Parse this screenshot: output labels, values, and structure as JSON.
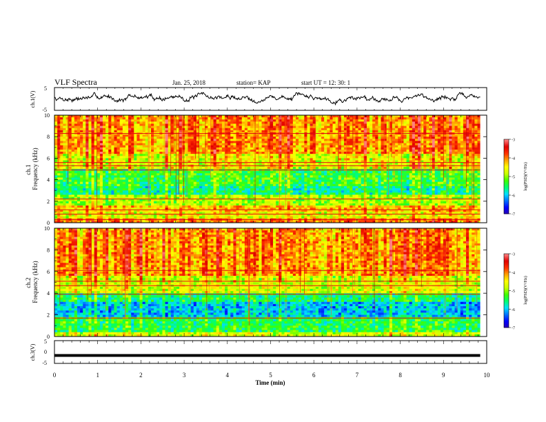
{
  "header": {
    "title": "VLF Spectra",
    "date": "Jan. 25, 2018",
    "station": "station= KAP",
    "start": "start  UT  =   12: 30: 1"
  },
  "colors": {
    "colorscale": [
      "#000000",
      "#2b00b4",
      "#0000ff",
      "#0070ff",
      "#00e0ff",
      "#00ff70",
      "#40ff00",
      "#c8ff00",
      "#ffff00",
      "#ffa000",
      "#ff3000",
      "#e00000",
      "#ff8080",
      "#ffffff"
    ],
    "trace": "#000000"
  },
  "chart_data": [
    {
      "type": "line",
      "panel": "ch1-waveform",
      "ylabel": "ch.1(V)",
      "ylim": [
        -5,
        5
      ],
      "yticks": [
        "5",
        "-5"
      ],
      "xlim": [
        0,
        10
      ],
      "description_of_values": "noisy voltage trace mostly between -1 and +2 V, ending near 9.85 min",
      "x_end": 9.85
    },
    {
      "type": "heatmap",
      "panel": "ch1-spectrogram",
      "ylabel": "ch.1\nFrequency (kHz)",
      "ylim": [
        0,
        10
      ],
      "yticks": [
        "0",
        "2",
        "4",
        "6",
        "8",
        "10"
      ],
      "xlim": [
        0,
        10
      ],
      "x_end": 9.85,
      "colorbar": {
        "label": "log(PSD)(V²/Hz)",
        "ticks": [
          "-3",
          "-4",
          "-5",
          "-6",
          "-7"
        ],
        "range": [
          -7,
          -3
        ]
      },
      "bands_kHz": [
        {
          "from": 0,
          "to": 0.4,
          "level": -4.0
        },
        {
          "from": 0.4,
          "to": 1.0,
          "level": -4.6
        },
        {
          "from": 1.0,
          "to": 1.6,
          "level": -4.3
        },
        {
          "from": 1.6,
          "to": 2.6,
          "level": -4.9
        },
        {
          "from": 2.6,
          "to": 3.4,
          "level": -5.6
        },
        {
          "from": 3.4,
          "to": 4.9,
          "level": -5.3
        },
        {
          "from": 4.9,
          "to": 6.5,
          "level": -4.6
        },
        {
          "from": 6.5,
          "to": 10,
          "level": -4.1
        }
      ],
      "horizontal_lines_kHz": [
        0.3,
        0.8,
        1.2,
        2.2,
        4.9,
        5.3,
        5.6,
        8.3
      ]
    },
    {
      "type": "heatmap",
      "panel": "ch2-spectrogram",
      "ylabel": "ch.2\nFrequency (kHz)",
      "ylim": [
        0,
        10
      ],
      "yticks": [
        "0",
        "2",
        "4",
        "6",
        "8",
        "10"
      ],
      "xlim": [
        0,
        10
      ],
      "x_end": 9.85,
      "colorbar": {
        "label": "log(PSD)(V²/Hz)",
        "ticks": [
          "-3",
          "-4",
          "-5",
          "-6",
          "-7"
        ],
        "range": [
          -7,
          -3
        ]
      },
      "bands_kHz": [
        {
          "from": 0,
          "to": 0.5,
          "level": -4.7
        },
        {
          "from": 0.5,
          "to": 1.8,
          "level": -5.4
        },
        {
          "from": 1.8,
          "to": 3.1,
          "level": -6.0
        },
        {
          "from": 3.1,
          "to": 3.9,
          "level": -5.5
        },
        {
          "from": 3.9,
          "to": 5.6,
          "level": -4.7
        },
        {
          "from": 5.6,
          "to": 10,
          "level": -4.1
        }
      ],
      "horizontal_lines_kHz": [
        1.7,
        3.9,
        4.7,
        5.1,
        6.1
      ]
    },
    {
      "type": "line",
      "panel": "ch3-waveform",
      "ylabel": "ch.3(V)",
      "ylim": [
        -5,
        5
      ],
      "yticks": [
        "5",
        "0",
        "-5"
      ],
      "xlim": [
        0,
        10
      ],
      "values_note": "flat line at about -1.5 V",
      "y_constant": -1.5,
      "x_end": 9.85
    },
    {
      "type": "axis",
      "panel": "time-axis",
      "xlabel": "Time (min)",
      "xticks": [
        "0",
        "1",
        "2",
        "3",
        "4",
        "5",
        "6",
        "7",
        "8",
        "9",
        "10"
      ],
      "xlim": [
        0,
        10
      ]
    }
  ]
}
